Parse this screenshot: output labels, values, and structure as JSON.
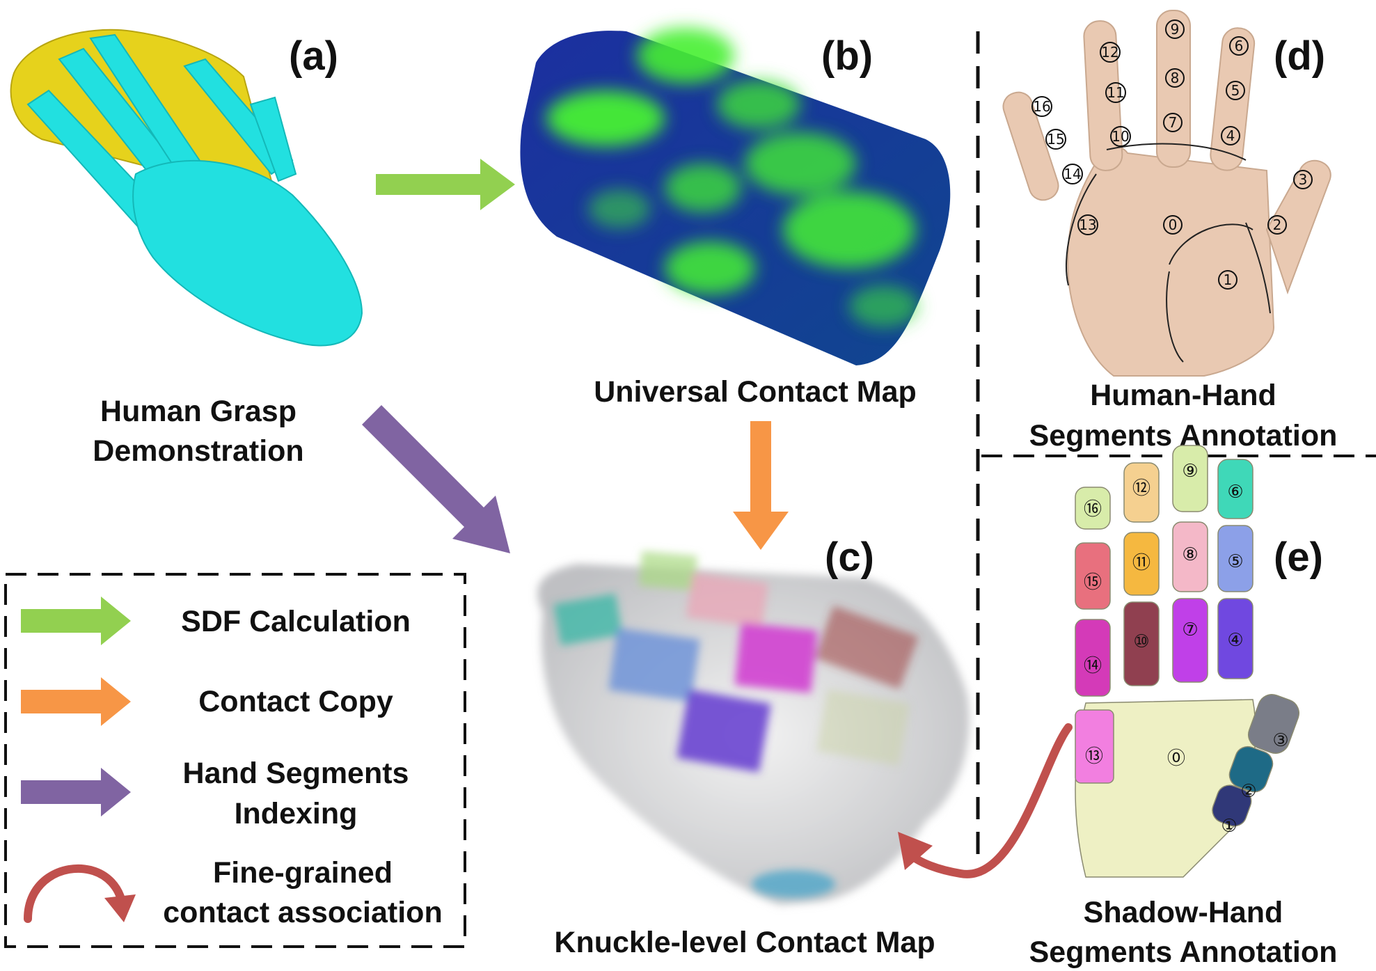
{
  "panels": {
    "a": "(a)",
    "b": "(b)",
    "c": "(c)",
    "d": "(d)",
    "e": "(e)"
  },
  "captions": {
    "human_grasp_line1": "Human Grasp",
    "human_grasp_line2": "Demonstration",
    "universal_contact_map": "Universal Contact Map",
    "knuckle_contact_map": "Knuckle-level Contact Map",
    "human_hand_line1": "Human-Hand",
    "human_hand_line2": "Segments Annotation",
    "shadow_hand_line1": "Shadow-Hand",
    "shadow_hand_line2": "Segments Annotation"
  },
  "legend": {
    "sdf": "SDF Calculation",
    "copy": "Contact Copy",
    "indexing_line1": "Hand Segments",
    "indexing_line2": "Indexing",
    "fine_line1": "Fine-grained",
    "fine_line2": "contact association"
  },
  "segment_numbers": [
    "0",
    "1",
    "2",
    "3",
    "4",
    "5",
    "6",
    "7",
    "8",
    "9",
    "10",
    "11",
    "12",
    "13",
    "14",
    "15",
    "16"
  ],
  "segment_glyphs": [
    "⓪",
    "①",
    "②",
    "③",
    "④",
    "⑤",
    "⑥",
    "⑦",
    "⑧",
    "⑨",
    "⑩",
    "⑪",
    "⑫",
    "⑬",
    "⑭",
    "⑮",
    "⑯"
  ],
  "colors": {
    "green_arrow": "#92d050",
    "orange_arrow": "#f79646",
    "purple_arrow": "#8064a2",
    "red_arrow": "#c0504d",
    "hand_cyan": "#22e0e0",
    "object_yellow": "#e6d21c",
    "contact_blue": "#1a3d9c",
    "contact_green": "#3ee03a",
    "skin": "#e9c9b2",
    "shadow_palm": "#eef0c4"
  }
}
